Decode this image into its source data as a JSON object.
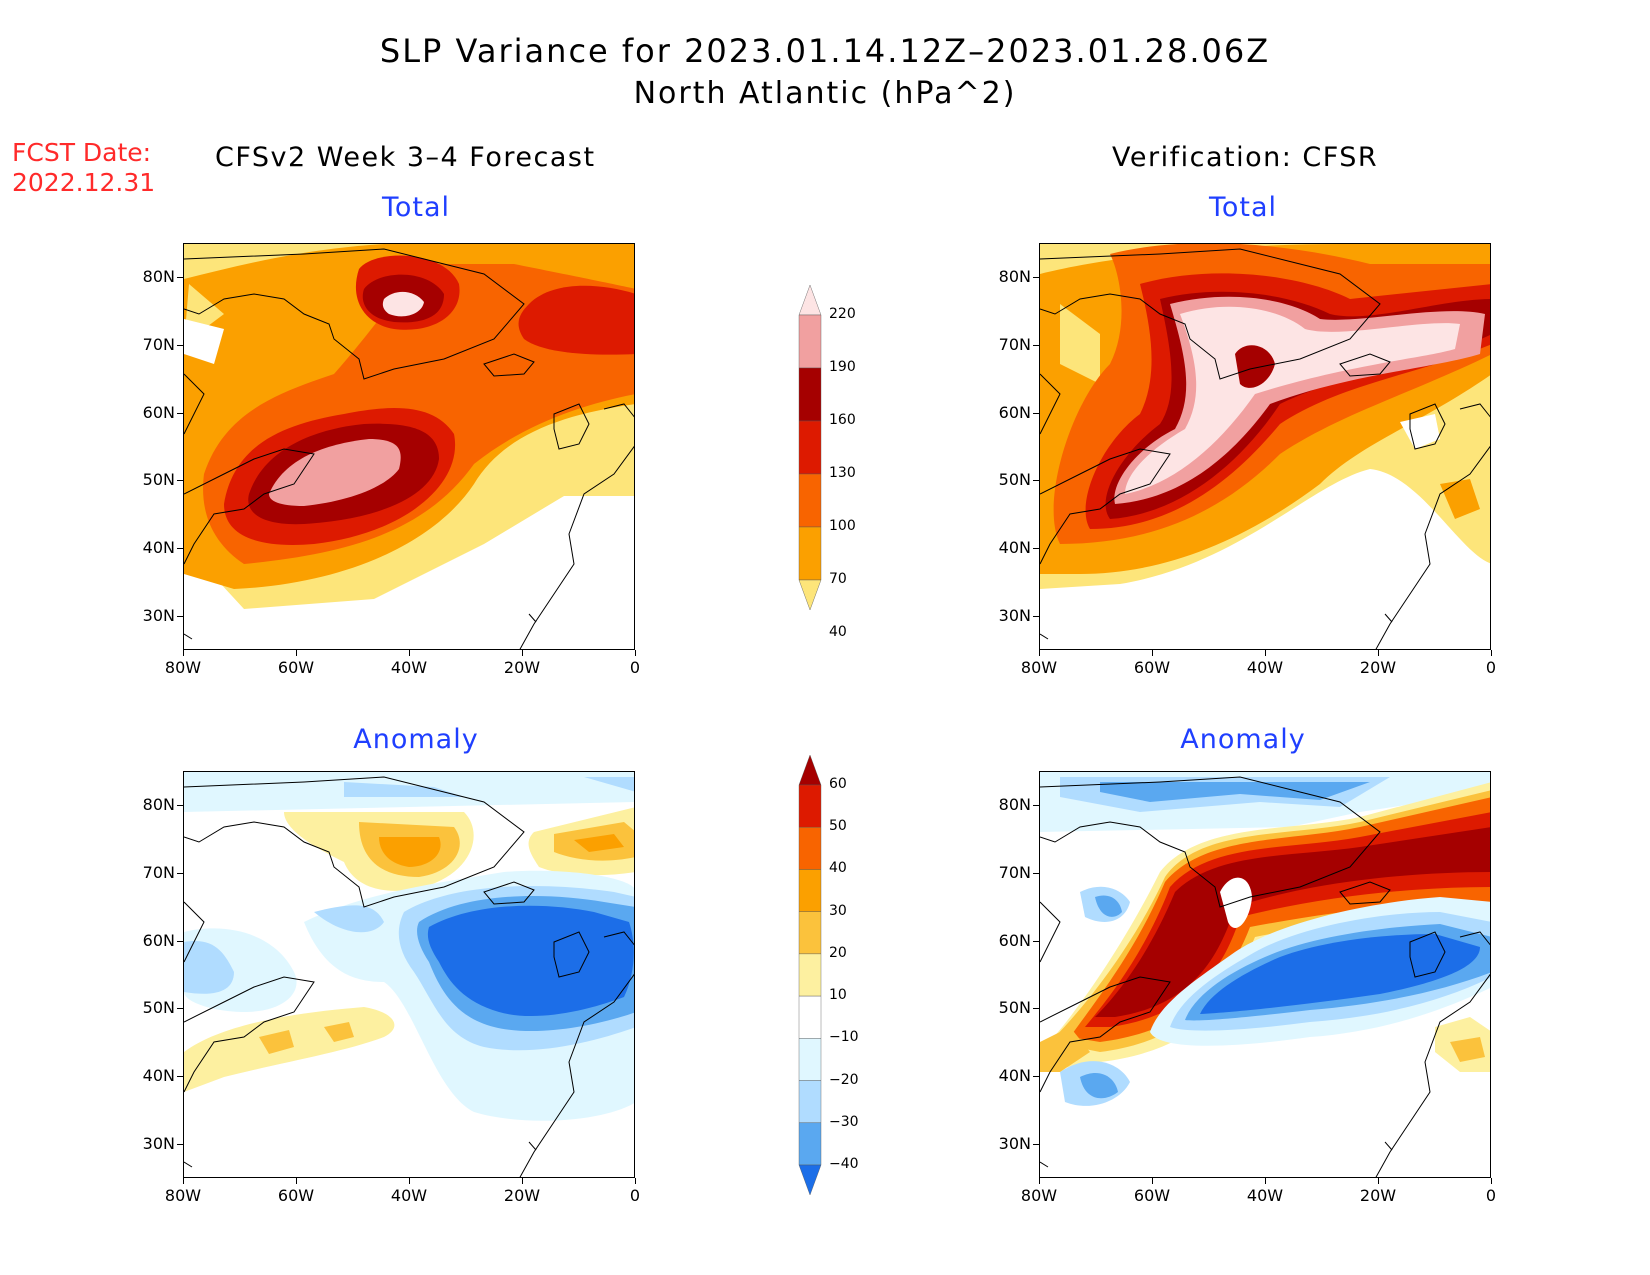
{
  "title": {
    "line1": "SLP Variance for 2023.01.14.12Z–2023.01.28.06Z",
    "line2": "North Atlantic (hPa^2)"
  },
  "fcst": {
    "line1": "FCST Date:",
    "line2": "2022.12.31"
  },
  "columns": {
    "left": "CFSv2 Week 3–4 Forecast",
    "right": "Verification: CFSR"
  },
  "panels": {
    "total": "Total",
    "anomaly": "Anomaly"
  },
  "axes": {
    "lat_labels": [
      "80N",
      "70N",
      "60N",
      "50N",
      "40N",
      "30N"
    ],
    "lon_labels": [
      "80W",
      "60W",
      "40W",
      "20W",
      "0"
    ]
  },
  "colorbars": {
    "total": {
      "levels": [
        "220",
        "190",
        "160",
        "130",
        "100",
        "70",
        "40"
      ],
      "colors": [
        "#fde4e4",
        "#f1a0a0",
        "#a50000",
        "#dd1a00",
        "#f86400",
        "#fba000",
        "#fde57a"
      ]
    },
    "anomaly": {
      "levels": [
        "60",
        "50",
        "40",
        "30",
        "20",
        "10",
        "−10",
        "−20",
        "−30",
        "−40"
      ],
      "colors": [
        "#a50000",
        "#dd1a00",
        "#f86400",
        "#fba000",
        "#fbc23c",
        "#fdf0a0",
        "#ffffff",
        "#e0f7ff",
        "#b0dcff",
        "#5aa8f0",
        "#1c6ee8"
      ]
    }
  },
  "chart_data": [
    {
      "type": "heatmap",
      "title": "CFSv2 Week 3–4 Forecast — Total",
      "units": "hPa^2",
      "xlim": [
        -80,
        0
      ],
      "ylim": [
        25,
        85
      ]
    },
    {
      "type": "heatmap",
      "title": "Verification: CFSR — Total",
      "units": "hPa^2",
      "xlim": [
        -80,
        0
      ],
      "ylim": [
        25,
        85
      ]
    },
    {
      "type": "heatmap",
      "title": "CFSv2 Week 3–4 Forecast — Anomaly",
      "units": "hPa^2",
      "xlim": [
        -80,
        0
      ],
      "ylim": [
        25,
        85
      ]
    },
    {
      "type": "heatmap",
      "title": "Verification: CFSR — Anomaly",
      "units": "hPa^2",
      "xlim": [
        -80,
        0
      ],
      "ylim": [
        25,
        85
      ]
    }
  ]
}
